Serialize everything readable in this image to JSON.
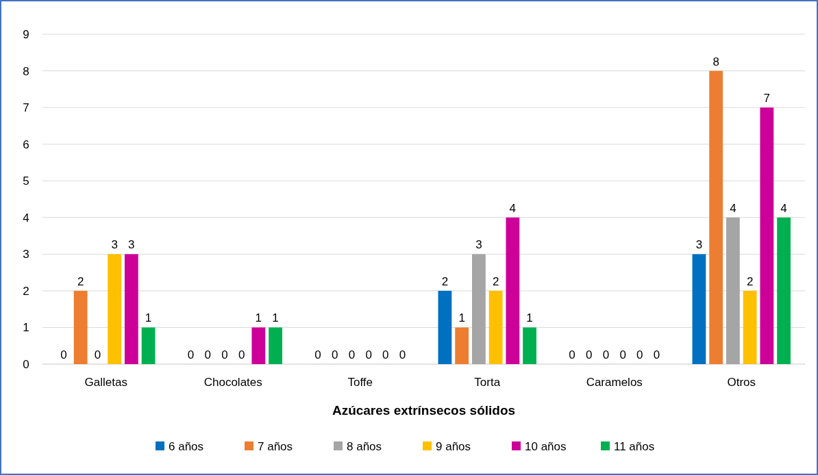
{
  "chart_data": {
    "type": "bar",
    "xlabel": "Azúcares extrínsecos sólidos",
    "categories": [
      "Galletas",
      "Chocolates",
      "Toffe",
      "Torta",
      "Caramelos",
      "Otros"
    ],
    "series": [
      {
        "name": "6 años",
        "color": "#0070c0",
        "values": [
          0,
          0,
          0,
          2,
          0,
          3
        ]
      },
      {
        "name": "7 años",
        "color": "#ed7d31",
        "values": [
          2,
          0,
          0,
          1,
          0,
          8
        ]
      },
      {
        "name": "8 años",
        "color": "#a5a5a5",
        "values": [
          0,
          0,
          0,
          3,
          0,
          4
        ]
      },
      {
        "name": "9 años",
        "color": "#ffc000",
        "values": [
          3,
          0,
          0,
          2,
          0,
          2
        ]
      },
      {
        "name": "10 años",
        "color": "#cc0099",
        "values": [
          3,
          1,
          0,
          4,
          0,
          7
        ]
      },
      {
        "name": "11 años",
        "color": "#00b050",
        "values": [
          1,
          1,
          0,
          1,
          0,
          4
        ]
      }
    ],
    "ylim": [
      0,
      9
    ],
    "yticks": [
      0,
      1,
      2,
      3,
      4,
      5,
      6,
      7,
      8,
      9
    ],
    "grid": "y",
    "legend": "bottom",
    "data_labels": true
  }
}
